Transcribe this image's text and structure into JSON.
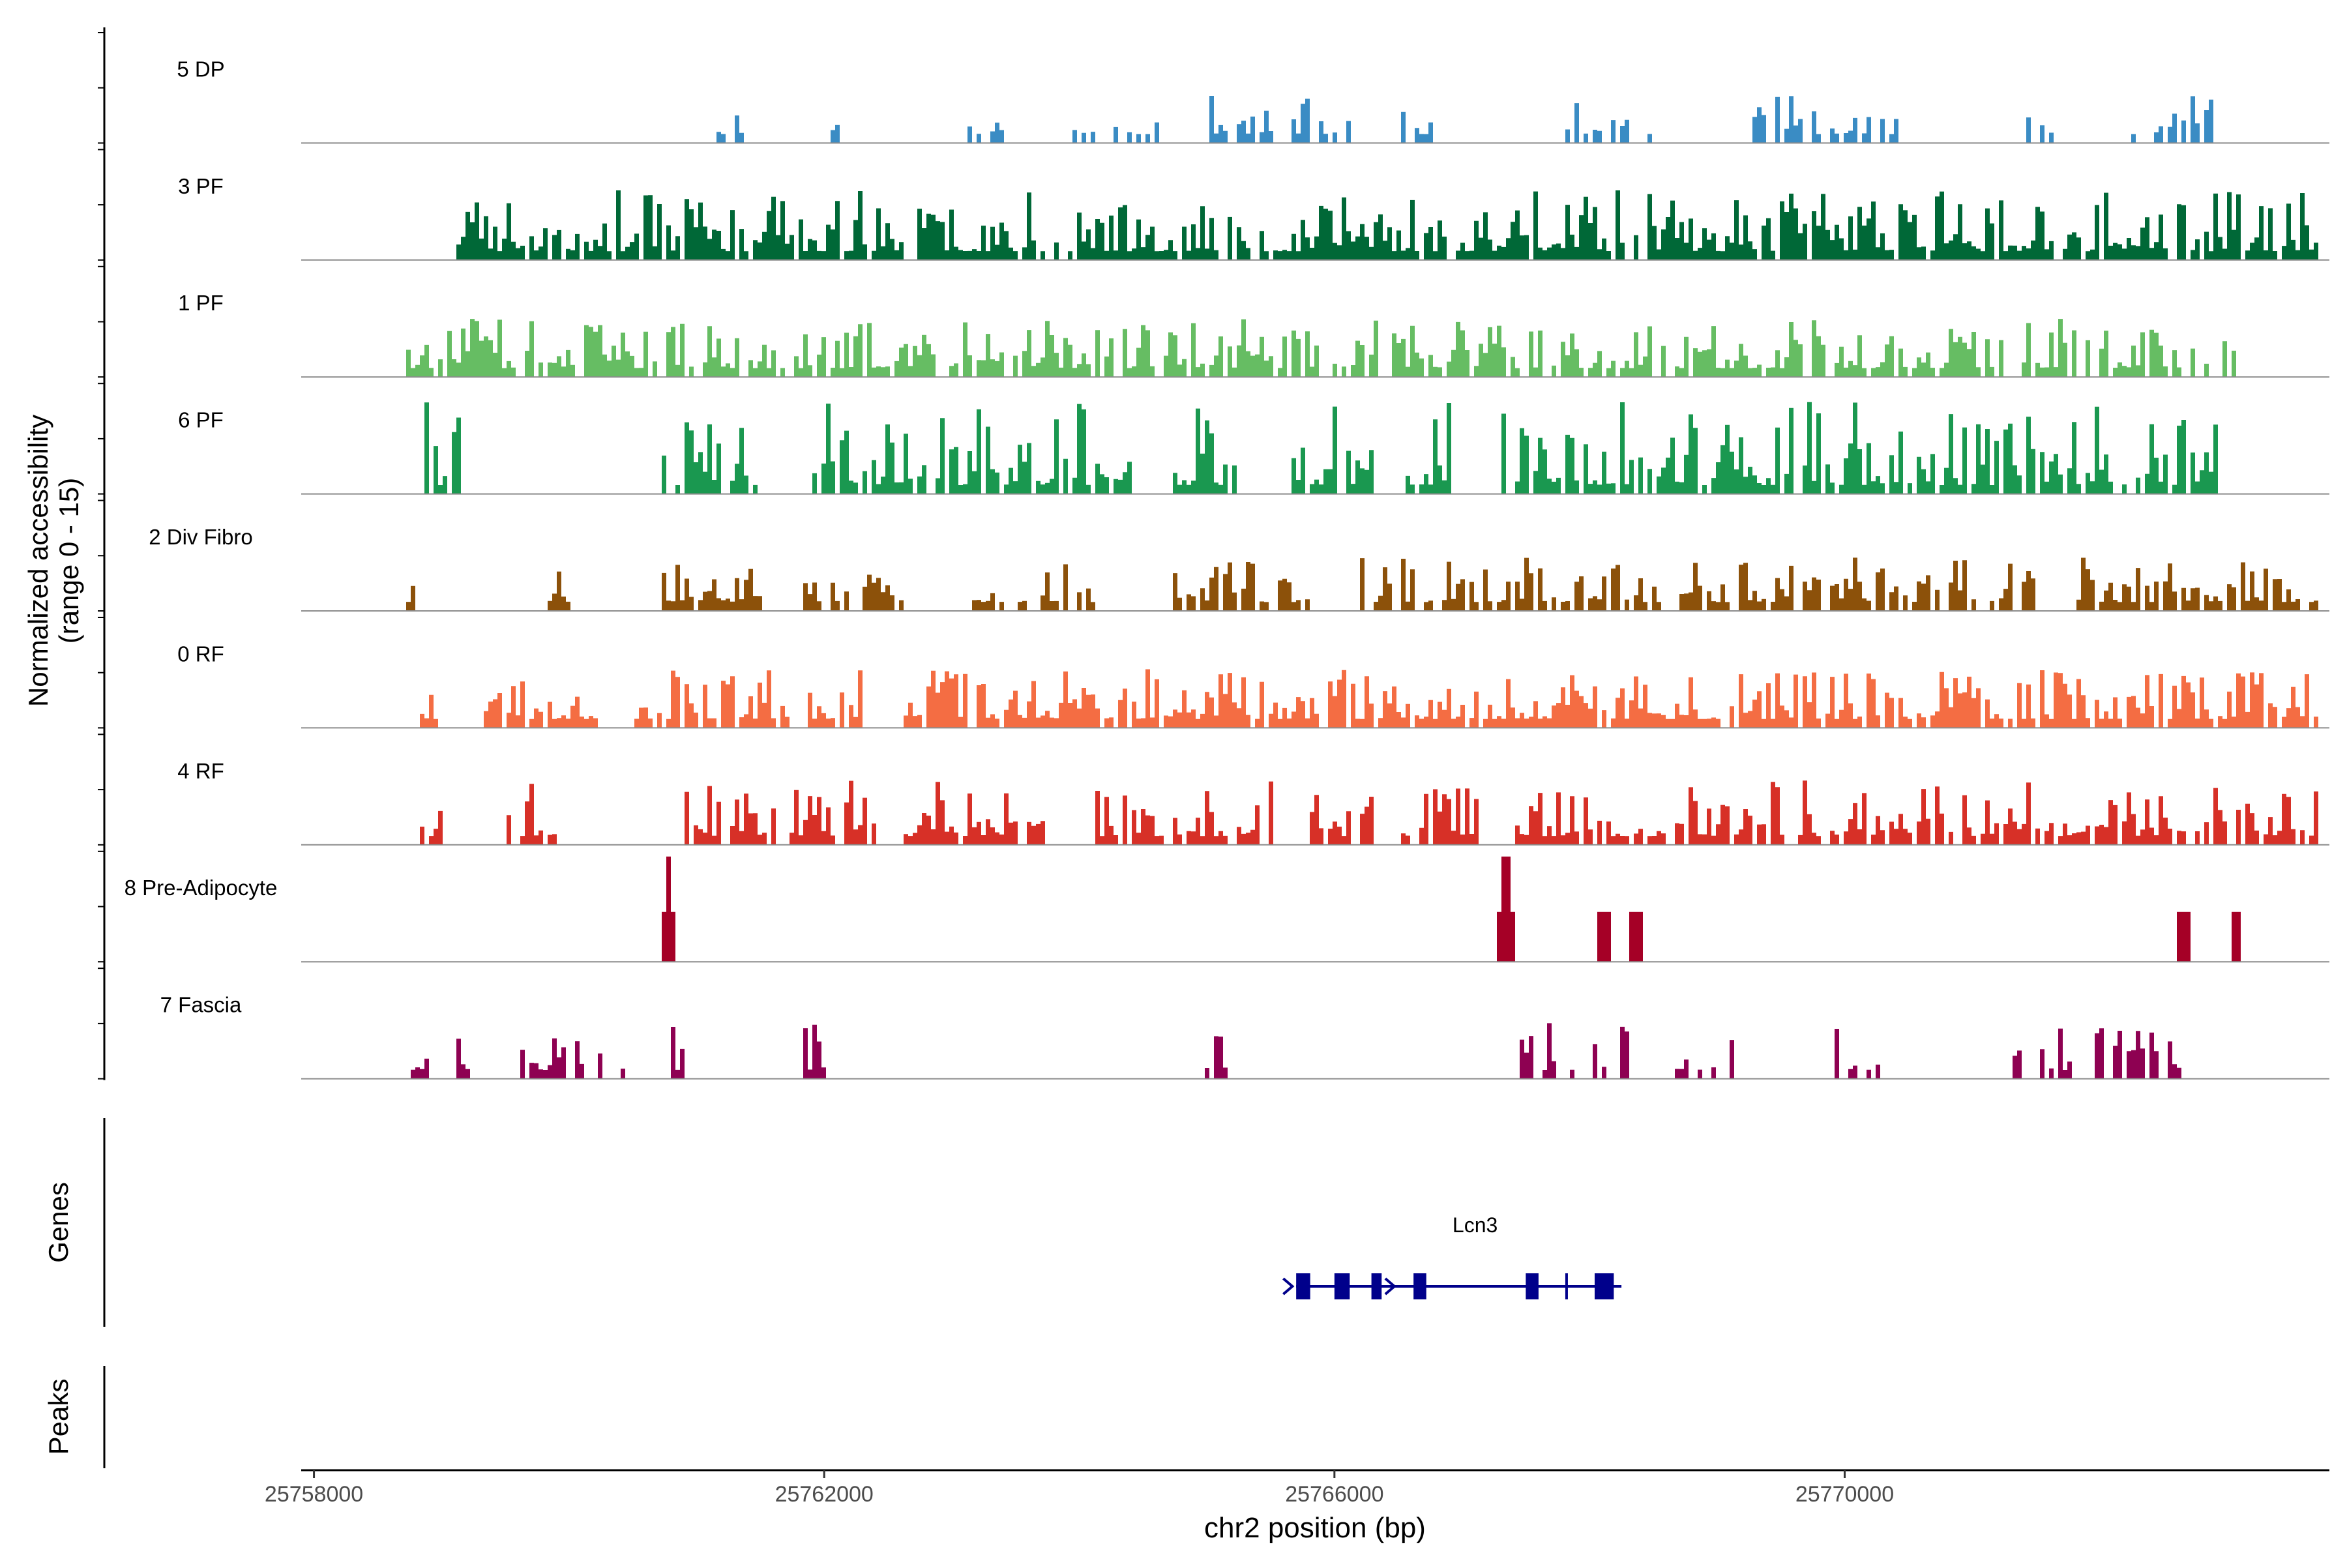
{
  "chart_data": {
    "type": "coverage",
    "ylabel_line1": "Normalized accessibility",
    "ylabel_line2": "(range 0 - 15)",
    "y_range": [
      0,
      15
    ],
    "xlabel": "chr2 position (bp)",
    "xlim": [
      25757900,
      25773800
    ],
    "x_ticks": [
      25758000,
      25762000,
      25766000,
      25770000
    ],
    "x_tick_labels": [
      "25758000",
      "25762000",
      "25766000",
      "25770000"
    ],
    "tracks": [
      {
        "label": "5 DP",
        "color": "#3a8cc4",
        "seed": 11,
        "density": 0.5,
        "amp": 0.35,
        "islands": [
          [
            25761150,
            25761350
          ],
          [
            25762000,
            25762150
          ],
          [
            25763100,
            25763400
          ],
          [
            25763800,
            25764600
          ],
          [
            25765000,
            25766100
          ],
          [
            25766400,
            25766800
          ],
          [
            25767800,
            25768500
          ],
          [
            25769200,
            25770400
          ],
          [
            25771200,
            25771700
          ],
          [
            25772200,
            25772900
          ]
        ]
      },
      {
        "label": "3 PF",
        "color": "#006837",
        "seed": 23,
        "density": 0.85,
        "amp": 0.55,
        "islands": [
          [
            25759100,
            25770000
          ],
          [
            25770000,
            25773700
          ]
        ]
      },
      {
        "label": "1 PF",
        "color": "#66bd63",
        "seed": 37,
        "density": 0.75,
        "amp": 0.45,
        "islands": [
          [
            25758700,
            25773100
          ]
        ]
      },
      {
        "label": "6 PF",
        "color": "#1a9850",
        "seed": 41,
        "density": 0.8,
        "amp": 0.75,
        "islands": [
          [
            25758850,
            25759150
          ],
          [
            25760700,
            25761450
          ],
          [
            25761900,
            25764400
          ],
          [
            25764700,
            25765200
          ],
          [
            25765600,
            25766300
          ],
          [
            25766500,
            25766900
          ],
          [
            25767300,
            25772900
          ]
        ]
      },
      {
        "label": "2 Div Fibro",
        "color": "#8c510a",
        "seed": 53,
        "density": 0.7,
        "amp": 0.4,
        "islands": [
          [
            25758700,
            25758800
          ],
          [
            25759800,
            25760000
          ],
          [
            25760700,
            25761500
          ],
          [
            25761800,
            25762200
          ],
          [
            25762300,
            25762600
          ],
          [
            25763100,
            25764100
          ],
          [
            25764700,
            25765800
          ],
          [
            25766100,
            25768200
          ],
          [
            25768200,
            25771500
          ],
          [
            25771800,
            25773700
          ]
        ]
      },
      {
        "label": "0 RF",
        "color": "#f46d43",
        "seed": 67,
        "density": 0.85,
        "amp": 0.45,
        "islands": [
          [
            25758800,
            25758950
          ],
          [
            25759300,
            25760200
          ],
          [
            25760500,
            25761700
          ],
          [
            25761800,
            25762300
          ],
          [
            25762600,
            25769400
          ],
          [
            25769400,
            25773700
          ]
        ]
      },
      {
        "label": "4 RF",
        "color": "#d73027",
        "seed": 79,
        "density": 0.75,
        "amp": 0.5,
        "islands": [
          [
            25758800,
            25759000
          ],
          [
            25759500,
            25759900
          ],
          [
            25760900,
            25761600
          ],
          [
            25761700,
            25762400
          ],
          [
            25762600,
            25763800
          ],
          [
            25764100,
            25765500
          ],
          [
            25765800,
            25766300
          ],
          [
            25766500,
            25767100
          ],
          [
            25767400,
            25769500
          ],
          [
            25769600,
            25773700
          ]
        ]
      },
      {
        "label": "8 Pre-Adipocyte",
        "color": "#a50026",
        "seed": 83,
        "density": 0.0,
        "amp": 0.0,
        "peaks": [
          [
            25760700,
            25760830,
            0.45,
            0.95
          ],
          [
            25767250,
            25767400,
            0.45,
            0.95
          ],
          [
            25768050,
            25768150,
            0.45,
            0.45
          ],
          [
            25768300,
            25768400,
            0.45,
            0.45
          ],
          [
            25772600,
            25772700,
            0.45,
            0.45
          ],
          [
            25773000,
            25773100,
            0.45,
            0.45
          ]
        ],
        "islands": []
      },
      {
        "label": "7 Fascia",
        "color": "#8e0152",
        "seed": 97,
        "density": 0.55,
        "amp": 0.45,
        "islands": [
          [
            25758750,
            25758900
          ],
          [
            25759050,
            25759200
          ],
          [
            25759500,
            25759950
          ],
          [
            25760000,
            25760250
          ],
          [
            25760400,
            25760500
          ],
          [
            25760700,
            25760900
          ],
          [
            25761800,
            25762000
          ],
          [
            25764950,
            25765150
          ],
          [
            25767400,
            25768300
          ],
          [
            25768600,
            25769100
          ],
          [
            25769800,
            25770300
          ],
          [
            25771300,
            25771800
          ],
          [
            25771900,
            25772700
          ]
        ]
      }
    ],
    "genes_title": "Genes",
    "peaks_title": "Peaks",
    "gene": {
      "name": "Lcn3",
      "start": 25765700,
      "end": 25768250,
      "color": "#00008b",
      "exons": [
        [
          25765700,
          25765810
        ],
        [
          25766000,
          25766120
        ],
        [
          25766290,
          25766370
        ],
        [
          25766620,
          25766720
        ],
        [
          25767500,
          25767600
        ],
        [
          25768040,
          25768190
        ]
      ],
      "arrows": [
        25765650,
        25766450
      ],
      "marks": [
        25767820
      ]
    }
  }
}
